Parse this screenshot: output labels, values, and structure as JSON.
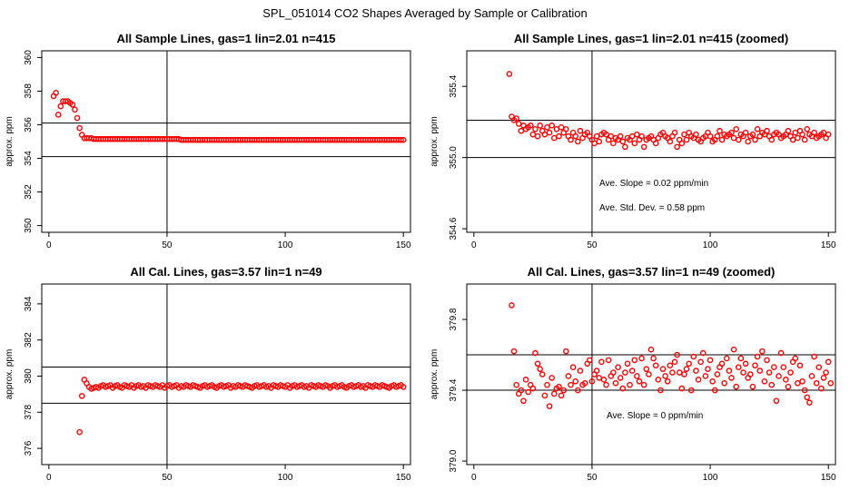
{
  "figure": {
    "title": "SPL_051014  CO2 Shapes Averaged by Sample or Calibration",
    "point_color": "#ff0000",
    "line_color": "#000000"
  },
  "chart_data": [
    {
      "type": "scatter",
      "title": "All Sample Lines, gas=1 lin=2.01 n=415",
      "xlabel": "",
      "ylabel": "approx. ppm",
      "xlim": [
        -3,
        153
      ],
      "ylim": [
        349.6,
        360.4
      ],
      "xticks": [
        0,
        50,
        100,
        150
      ],
      "xtick_labels": [
        "0",
        "50",
        "100",
        "150"
      ],
      "yticks": [
        350,
        352,
        354,
        356,
        358,
        360
      ],
      "ytick_labels": [
        "350",
        "352",
        "354",
        "356",
        "358",
        "360"
      ],
      "vlines": [
        50
      ],
      "hlines": [
        354.1,
        356.1
      ],
      "grid": false,
      "annotations": [],
      "x_start": 2,
      "y": [
        357.7,
        357.9,
        356.6,
        357.1,
        357.4,
        357.4,
        357.4,
        357.3,
        357.2,
        356.9,
        356.4,
        355.8,
        355.4,
        355.2,
        355.2,
        355.2,
        355.2,
        355.15,
        355.15,
        355.15,
        355.15,
        355.15,
        355.15,
        355.15,
        355.15,
        355.15,
        355.15,
        355.15,
        355.15,
        355.15,
        355.15,
        355.15,
        355.15,
        355.15,
        355.15,
        355.15,
        355.15,
        355.15,
        355.15,
        355.15,
        355.15,
        355.15,
        355.15,
        355.15,
        355.15,
        355.15,
        355.15,
        355.15,
        355.15,
        355.15,
        355.15,
        355.15,
        355.15,
        355.15,
        355.1,
        355.1,
        355.1,
        355.1,
        355.1,
        355.1,
        355.1,
        355.1,
        355.1,
        355.1,
        355.1,
        355.1,
        355.1,
        355.1,
        355.1,
        355.1,
        355.1,
        355.1,
        355.1,
        355.1,
        355.1,
        355.1,
        355.1,
        355.1,
        355.1,
        355.1,
        355.1,
        355.1,
        355.1,
        355.1,
        355.1,
        355.1,
        355.1,
        355.1,
        355.1,
        355.1,
        355.1,
        355.1,
        355.1,
        355.1,
        355.1,
        355.1,
        355.1,
        355.1,
        355.1,
        355.1,
        355.1,
        355.1,
        355.1,
        355.1,
        355.1,
        355.1,
        355.1,
        355.1,
        355.1,
        355.1,
        355.1,
        355.1,
        355.1,
        355.1,
        355.1,
        355.1,
        355.1,
        355.1,
        355.1,
        355.1,
        355.1,
        355.1,
        355.1,
        355.1,
        355.1,
        355.1,
        355.1,
        355.1,
        355.1,
        355.1,
        355.1,
        355.1,
        355.1,
        355.1,
        355.1,
        355.1,
        355.1,
        355.1,
        355.1,
        355.1,
        355.1,
        355.1,
        355.1,
        355.1,
        355.1,
        355.1,
        355.1,
        355.1,
        355.1
      ]
    },
    {
      "type": "scatter",
      "title": "All Sample Lines, gas=1 lin=2.01 n=415 (zoomed)",
      "xlabel": "",
      "ylabel": "approx. ppm",
      "xlim": [
        -3,
        153
      ],
      "ylim": [
        354.58,
        355.6
      ],
      "xticks": [
        0,
        50,
        100,
        150
      ],
      "xtick_labels": [
        "0",
        "50",
        "100",
        "150"
      ],
      "yticks": [
        354.6,
        355.0,
        355.4
      ],
      "ytick_labels": [
        "354.6",
        "355.0",
        "355.4"
      ],
      "vlines": [
        50
      ],
      "hlines": [
        355.0,
        355.21
      ],
      "grid": false,
      "annotations": [
        "Ave. Slope =  0.02  ppm/min",
        "Ave. Std. Dev. =  0.58  ppm"
      ],
      "x_start": 15,
      "y": [
        355.47,
        355.23,
        355.21,
        355.22,
        355.19,
        355.15,
        355.18,
        355.16,
        355.17,
        355.18,
        355.13,
        355.16,
        355.12,
        355.18,
        355.15,
        355.13,
        355.17,
        355.14,
        355.18,
        355.11,
        355.16,
        355.12,
        355.17,
        355.14,
        355.16,
        355.12,
        355.1,
        355.14,
        355.12,
        355.09,
        355.15,
        355.11,
        355.13,
        355.14,
        355.12,
        355.1,
        355.08,
        355.12,
        355.09,
        355.13,
        355.14,
        355.13,
        355.1,
        355.12,
        355.08,
        355.11,
        355.1,
        355.12,
        355.09,
        355.06,
        355.11,
        355.1,
        355.12,
        355.08,
        355.13,
        355.1,
        355.12,
        355.06,
        355.1,
        355.11,
        355.12,
        355.1,
        355.08,
        355.11,
        355.13,
        355.14,
        355.12,
        355.11,
        355.09,
        355.12,
        355.14,
        355.06,
        355.1,
        355.08,
        355.13,
        355.1,
        355.14,
        355.12,
        355.11,
        355.13,
        355.1,
        355.09,
        355.11,
        355.12,
        355.14,
        355.12,
        355.09,
        355.1,
        355.12,
        355.15,
        355.1,
        355.13,
        355.12,
        355.13,
        355.14,
        355.11,
        355.16,
        355.1,
        355.13,
        355.12,
        355.14,
        355.09,
        355.12,
        355.13,
        355.1,
        355.16,
        355.12,
        355.14,
        355.13,
        355.15,
        355.12,
        355.1,
        355.13,
        355.14,
        355.13,
        355.11,
        355.12,
        355.13,
        355.15,
        355.12,
        355.1,
        355.14,
        355.11,
        355.15,
        355.13,
        355.1,
        355.16,
        355.13,
        355.12,
        355.14,
        355.11,
        355.12,
        355.13,
        355.14,
        355.11,
        355.13
      ]
    },
    {
      "type": "scatter",
      "title": "All Cal. Lines, gas=3.57 lin=1 n=49",
      "xlabel": "",
      "ylabel": "approx. ppm",
      "xlim": [
        -3,
        153
      ],
      "ylim": [
        375.1,
        385.1
      ],
      "xticks": [
        0,
        50,
        100,
        150
      ],
      "xtick_labels": [
        "0",
        "50",
        "100",
        "150"
      ],
      "yticks": [
        376,
        378,
        380,
        382,
        384
      ],
      "ytick_labels": [
        "376",
        "378",
        "380",
        "382",
        "384"
      ],
      "vlines": [
        50
      ],
      "hlines": [
        378.5,
        380.5
      ],
      "grid": false,
      "annotations": [],
      "x_start": 13,
      "y": [
        376.9,
        378.9,
        379.8,
        379.6,
        379.4,
        379.3,
        379.35,
        379.4,
        379.35,
        379.45,
        379.5,
        379.4,
        379.45,
        379.5,
        379.35,
        379.45,
        379.5,
        379.4,
        379.35,
        379.5,
        379.45,
        379.4,
        379.5,
        379.35,
        379.45,
        379.5,
        379.4,
        379.45,
        379.35,
        379.5,
        379.45,
        379.4,
        379.5,
        379.45,
        379.4,
        379.5,
        379.35,
        379.45,
        379.5,
        379.4,
        379.45,
        379.5,
        379.35,
        379.45,
        379.4,
        379.5,
        379.45,
        379.4,
        379.5,
        379.45,
        379.4,
        379.35,
        379.45,
        379.5,
        379.4,
        379.45,
        379.5,
        379.4,
        379.35,
        379.45,
        379.5,
        379.4,
        379.45,
        379.5,
        379.35,
        379.45,
        379.4,
        379.5,
        379.45,
        379.4,
        379.5,
        379.45,
        379.4,
        379.35,
        379.45,
        379.5,
        379.4,
        379.45,
        379.5,
        379.4,
        379.45,
        379.35,
        379.5,
        379.45,
        379.4,
        379.5,
        379.45,
        379.4,
        379.5,
        379.35,
        379.45,
        379.5,
        379.4,
        379.45,
        379.5,
        379.4,
        379.45,
        379.35,
        379.5,
        379.45,
        379.4,
        379.5,
        379.45,
        379.4,
        379.5,
        379.45,
        379.35,
        379.45,
        379.5,
        379.4,
        379.45,
        379.5,
        379.4,
        379.35,
        379.45,
        379.5,
        379.4,
        379.45,
        379.5,
        379.4,
        379.45,
        379.35,
        379.5,
        379.45,
        379.4,
        379.5,
        379.45,
        379.4,
        379.5,
        379.45,
        379.4,
        379.35,
        379.45,
        379.5,
        379.4,
        379.45,
        379.5,
        379.4
      ]
    },
    {
      "type": "scatter",
      "title": "All Cal. Lines, gas=3.57 lin=1 n=49 (zoomed)",
      "xlabel": "",
      "ylabel": "approx. ppm",
      "xlim": [
        -3,
        153
      ],
      "ylim": [
        378.98,
        380.0
      ],
      "xticks": [
        0,
        50,
        100,
        150
      ],
      "xtick_labels": [
        "0",
        "50",
        "100",
        "150"
      ],
      "yticks": [
        379.0,
        379.4,
        379.8
      ],
      "ytick_labels": [
        "379.0",
        "379.4",
        "379.8"
      ],
      "vlines": [
        50
      ],
      "hlines": [
        379.4,
        379.6
      ],
      "grid": false,
      "annotations": [
        "Ave. Slope =  0  ppm/min"
      ],
      "x_start": 16,
      "y": [
        379.88,
        379.62,
        379.43,
        379.38,
        379.4,
        379.34,
        379.46,
        379.39,
        379.43,
        379.41,
        379.61,
        379.55,
        379.52,
        379.49,
        379.37,
        379.43,
        379.31,
        379.47,
        379.38,
        379.41,
        379.42,
        379.37,
        379.4,
        379.62,
        379.48,
        379.43,
        379.53,
        379.45,
        379.4,
        379.51,
        379.43,
        379.44,
        379.55,
        379.57,
        379.45,
        379.49,
        379.51,
        379.47,
        379.56,
        379.46,
        379.43,
        379.57,
        379.48,
        379.5,
        379.44,
        379.53,
        379.47,
        379.41,
        379.5,
        379.55,
        379.43,
        379.51,
        379.57,
        379.48,
        379.45,
        379.58,
        379.43,
        379.52,
        379.49,
        379.63,
        379.58,
        379.54,
        379.46,
        379.4,
        379.52,
        379.48,
        379.45,
        379.54,
        379.5,
        379.56,
        379.6,
        379.5,
        379.41,
        379.49,
        379.52,
        379.55,
        379.4,
        379.59,
        379.51,
        379.46,
        379.56,
        379.61,
        379.48,
        379.52,
        379.57,
        379.45,
        379.4,
        379.49,
        379.53,
        379.55,
        379.44,
        379.58,
        379.51,
        379.47,
        379.63,
        379.42,
        379.53,
        379.58,
        379.5,
        379.55,
        379.47,
        379.49,
        379.42,
        379.54,
        379.59,
        379.51,
        379.62,
        379.45,
        379.57,
        379.5,
        379.43,
        379.53,
        379.34,
        379.48,
        379.61,
        379.53,
        379.46,
        379.42,
        379.5,
        379.56,
        379.58,
        379.44,
        379.54,
        379.45,
        379.4,
        379.36,
        379.33,
        379.48,
        379.59,
        379.44,
        379.53,
        379.41,
        379.47,
        379.5,
        379.56,
        379.44
      ]
    }
  ]
}
